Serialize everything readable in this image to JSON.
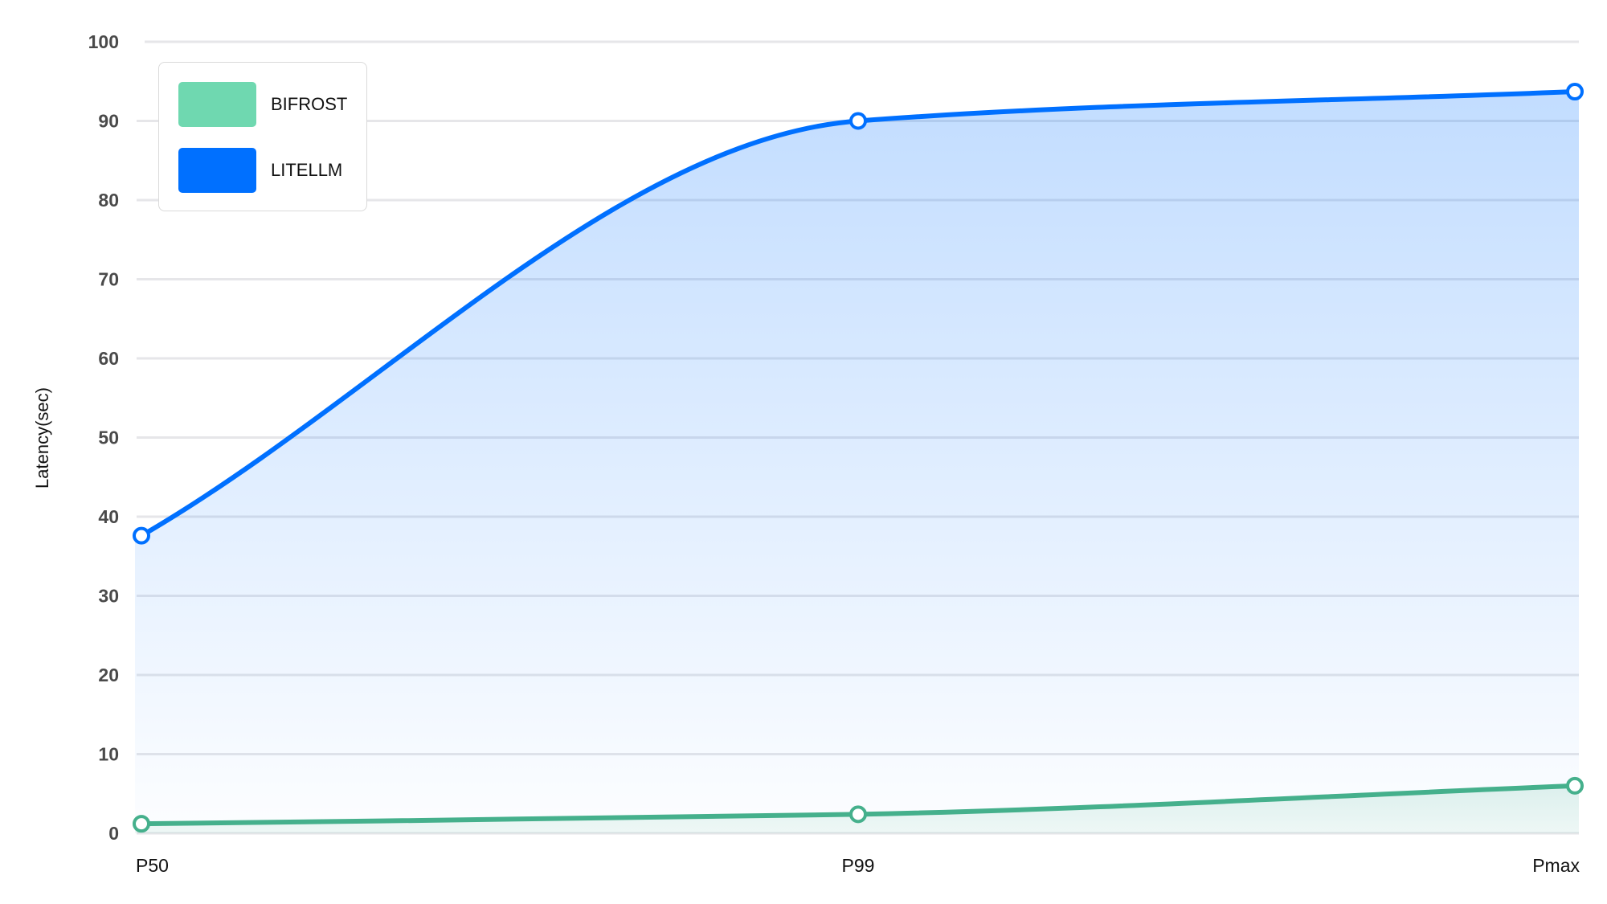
{
  "chart_data": {
    "type": "area",
    "title": "",
    "xlabel": "",
    "ylabel": "Latency(sec)",
    "categories": [
      "P50",
      "P99",
      "Pmax"
    ],
    "ylim": [
      0,
      100
    ],
    "yticks": [
      0,
      10,
      20,
      30,
      40,
      50,
      60,
      70,
      80,
      90,
      100
    ],
    "grid": true,
    "legend_position": "top-left",
    "series": [
      {
        "name": "BIFROST",
        "values": [
          1.2,
          2.4,
          6.0
        ],
        "color": "#45b08c",
        "legend_color": "#6fd8b0"
      },
      {
        "name": "LITELLM",
        "values": [
          37.6,
          90.0,
          93.7
        ],
        "color": "#0070ff",
        "legend_color": "#0070ff"
      }
    ]
  }
}
